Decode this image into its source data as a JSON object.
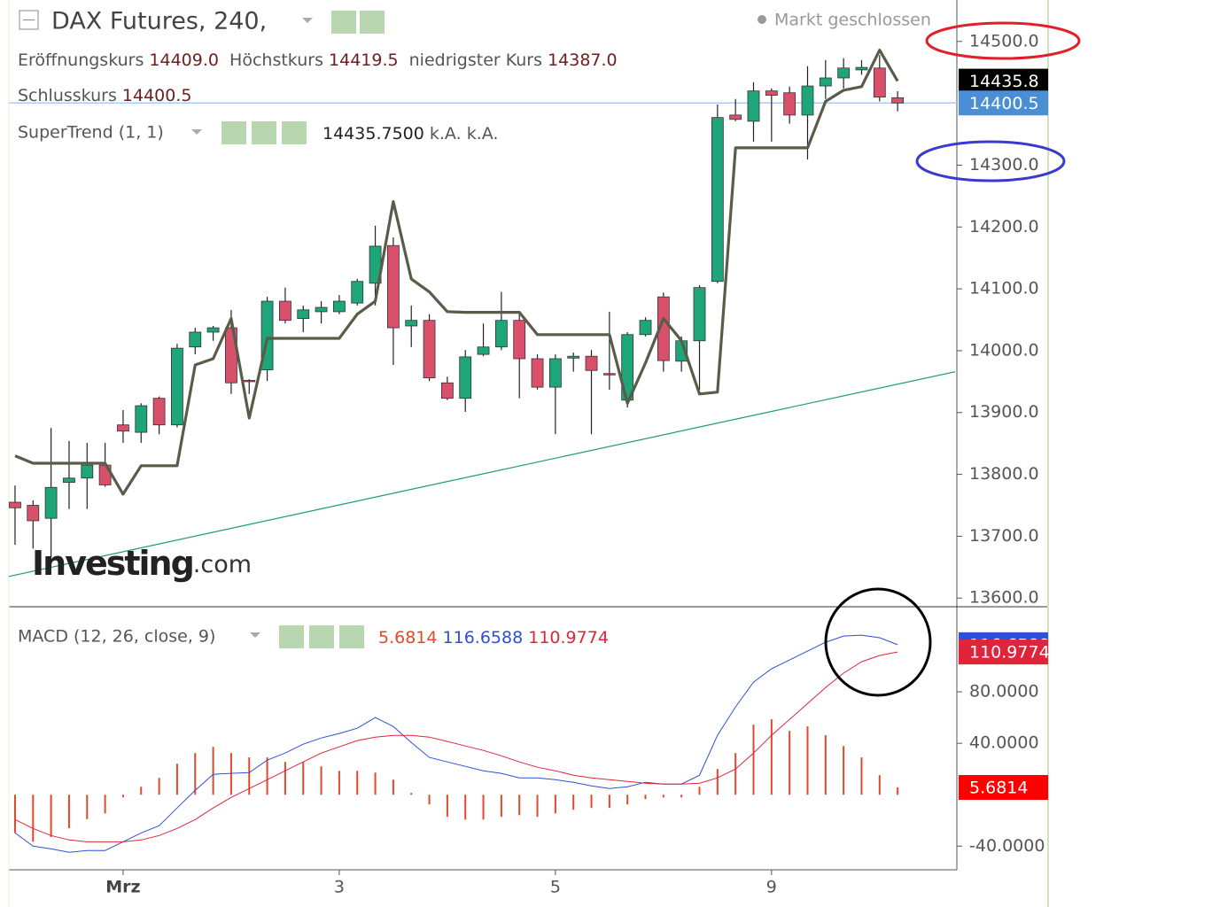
{
  "header": {
    "title": "DAX Futures, 240,",
    "status": "Markt geschlossen",
    "ohlc": [
      {
        "label": "Eröffnungskurs",
        "value": "14409.0"
      },
      {
        "label": "Höchstkurs",
        "value": "14419.5"
      },
      {
        "label": "niedrigster Kurs",
        "value": "14387.0"
      },
      {
        "label": "Schlusskurs",
        "value": "14400.5"
      }
    ],
    "watermark": [
      "Investing",
      ".com"
    ]
  },
  "chart_data": [
    {
      "type": "candlestick",
      "categories": [
        null,
        null,
        null,
        null,
        null,
        null,
        "Mrz",
        null,
        null,
        null,
        null,
        null,
        null,
        null,
        null,
        null,
        null,
        null,
        "3",
        null,
        null,
        null,
        null,
        null,
        null,
        null,
        null,
        null,
        null,
        null,
        "5",
        null,
        null,
        null,
        null,
        null,
        null,
        null,
        null,
        null,
        null,
        null,
        "9",
        null,
        null,
        null,
        null,
        null,
        null,
        null
      ],
      "open": [
        13755,
        13750,
        13729,
        13787,
        13794,
        13815,
        13880,
        13868,
        13923,
        13880,
        14006,
        14030,
        14037,
        13952,
        13969,
        14080,
        14052,
        14063,
        14063,
        14077,
        14109,
        14170,
        14040,
        14049,
        13948,
        13923,
        13994,
        14006,
        14049,
        13987,
        13941,
        13988,
        13991,
        13963,
        13920,
        14026,
        14087,
        13983,
        14016,
        14112,
        14381,
        14371,
        14420,
        14417,
        14381,
        14428,
        14441,
        14454,
        14457,
        14409
      ],
      "high": [
        13782,
        13758,
        13875,
        13854,
        13851,
        13851,
        13904,
        13915,
        13926,
        14011,
        14037,
        14040,
        14066,
        13954,
        14087,
        14102,
        14073,
        14080,
        14090,
        14116,
        14202,
        14183,
        14073,
        14059,
        13958,
        14001,
        14044,
        14095,
        14059,
        13994,
        13994,
        13997,
        14001,
        14063,
        14030,
        14054,
        14094,
        14023,
        14106,
        14398,
        14407,
        14434,
        14424,
        14427,
        14460,
        14470,
        14473,
        14470,
        14478,
        14419.5
      ],
      "low": [
        13686,
        13680,
        13665,
        13744,
        13744,
        13780,
        13851,
        13851,
        13865,
        13876,
        13994,
        14016,
        13930,
        13930,
        13951,
        14044,
        14030,
        14044,
        14059,
        14073,
        14073,
        13977,
        14006,
        13951,
        13920,
        13901,
        13991,
        14001,
        13923,
        13937,
        13865,
        13966,
        13865,
        13937,
        13908,
        14023,
        13966,
        13966,
        13937,
        14109,
        14371,
        14338,
        14338,
        14367,
        14309,
        14407,
        14424,
        14446,
        14403,
        14387
      ],
      "close": [
        13746,
        13725,
        13779,
        13794,
        13815,
        13783,
        13870,
        13911,
        13880,
        14004,
        14030,
        14037,
        13948,
        13950,
        14080,
        14049,
        14066,
        14070,
        14080,
        14112,
        14169,
        14037,
        14049,
        13956,
        13923,
        13990,
        14006,
        14049,
        13987,
        13941,
        13987,
        13991,
        13968,
        13961,
        14026,
        14049,
        13984,
        14016,
        14102,
        14377,
        14374,
        14420,
        14413,
        14381,
        14428,
        14441,
        14457,
        14458,
        14410,
        14400.5
      ],
      "up_color": "#1fa57a",
      "down_color": "#d9506b",
      "series": [
        {
          "name": "SuperTrend (1, 1)",
          "color": "#585c48",
          "values": [
            13830,
            13818,
            13818,
            13818,
            13818,
            13818,
            13768,
            13814,
            13814,
            13814,
            13977,
            13987,
            14052,
            13891,
            14020,
            14020,
            14020,
            14020,
            14020,
            14059,
            14080,
            14241,
            14116,
            14095,
            14063,
            14062,
            14062,
            14062,
            14062,
            14026,
            14026,
            14026,
            14026,
            14026,
            13915,
            13980,
            14052,
            14016,
            13930,
            13933,
            14328,
            14328,
            14328,
            14328,
            14328,
            14403,
            14421,
            14427,
            14486,
            14435.75
          ]
        }
      ],
      "indicator_values": [
        "14435.7500",
        "k.A.",
        "k.A."
      ],
      "trendline": {
        "color": "#1a9a78",
        "values": [
          13635,
          13966
        ]
      },
      "badges": [
        {
          "value": 14435.8,
          "label": "14435.8",
          "color": "#000000"
        },
        {
          "value": 14400.5,
          "label": "14400.5",
          "color": "#4a8fd6"
        }
      ],
      "price_line": {
        "value": 14400.5,
        "color": "#a8ccf2"
      },
      "ylim": [
        13586,
        14567
      ],
      "yticks": [
        {
          "value": 13600,
          "label": "13600.0"
        },
        {
          "value": 13700,
          "label": "13700.0"
        },
        {
          "value": 13800,
          "label": "13800.0"
        },
        {
          "value": 13900,
          "label": "13900.0"
        },
        {
          "value": 14000,
          "label": "14000.0"
        },
        {
          "value": 14100,
          "label": "14100.0"
        },
        {
          "value": 14200,
          "label": "14200.0"
        },
        {
          "value": 14300,
          "label": "14300.0"
        },
        {
          "value": 14500,
          "label": "14500.0"
        }
      ]
    },
    {
      "type": "macd",
      "title": "MACD (12, 26, close, 9)",
      "series": [
        {
          "kind": "histogram",
          "color": "#e2482c",
          "last_label": "5.6814",
          "values": [
            -29.7,
            -36.6,
            -33,
            -26,
            -19,
            -14.5,
            -2,
            6.2,
            13.1,
            24.1,
            32.4,
            37.2,
            32.4,
            29,
            29,
            25.5,
            25.5,
            22.1,
            18.6,
            18.6,
            17.2,
            11.7,
            1.4,
            -7.6,
            -17.2,
            -19.3,
            -19.3,
            -17.2,
            -15.9,
            -17.2,
            -14.5,
            -11.7,
            -10.3,
            -10.3,
            -7.6,
            -3.4,
            -2.1,
            -2.1,
            6.2,
            20,
            32.4,
            54.5,
            58.6,
            49.7,
            53.1,
            46.2,
            37.9,
            29,
            15.2,
            5.6814
          ]
        },
        {
          "kind": "line",
          "color": "#2f4fd6",
          "last_label": "116.6588",
          "values": [
            -29.7,
            -40,
            -42.1,
            -44.8,
            -43.4,
            -43.4,
            -36.6,
            -29.7,
            -24.1,
            -10.3,
            3.4,
            15.9,
            16.6,
            17.2,
            26.9,
            32.4,
            39.3,
            44.1,
            47.6,
            51.7,
            60,
            53.1,
            40.7,
            29,
            25.5,
            22.1,
            18.6,
            16.6,
            13.1,
            13.1,
            11.7,
            9.7,
            6.9,
            4.8,
            6.2,
            9.7,
            8.3,
            8.3,
            15.2,
            46.2,
            68.3,
            87.6,
            97.9,
            104.8,
            111.7,
            118.6,
            123.4,
            124.1,
            122.1,
            116.6588
          ]
        },
        {
          "kind": "line",
          "color": "#e0253a",
          "last_label": "110.9774",
          "values": [
            -19.3,
            -26.2,
            -31.7,
            -35.2,
            -36.6,
            -36.6,
            -36.6,
            -35.2,
            -31.7,
            -26.2,
            -19.3,
            -10.3,
            -2.1,
            4.8,
            11.7,
            18.6,
            25.5,
            32.4,
            37.2,
            42.1,
            44.8,
            46.2,
            46.2,
            44.8,
            41.4,
            37.9,
            34.5,
            30.3,
            25.5,
            21.4,
            18.6,
            15.2,
            13.1,
            11.7,
            10.3,
            9,
            8.3,
            8.3,
            9,
            13.1,
            20,
            32.4,
            46.2,
            58.6,
            71,
            83.4,
            94.5,
            103.4,
            108.3,
            110.9774
          ]
        }
      ],
      "ylim": [
        -57,
        145.5
      ],
      "yticks": [
        {
          "value": -40,
          "label": "-40.0000"
        },
        {
          "value": 40,
          "label": "40.0000"
        },
        {
          "value": 80,
          "label": "80.0000"
        }
      ]
    }
  ]
}
